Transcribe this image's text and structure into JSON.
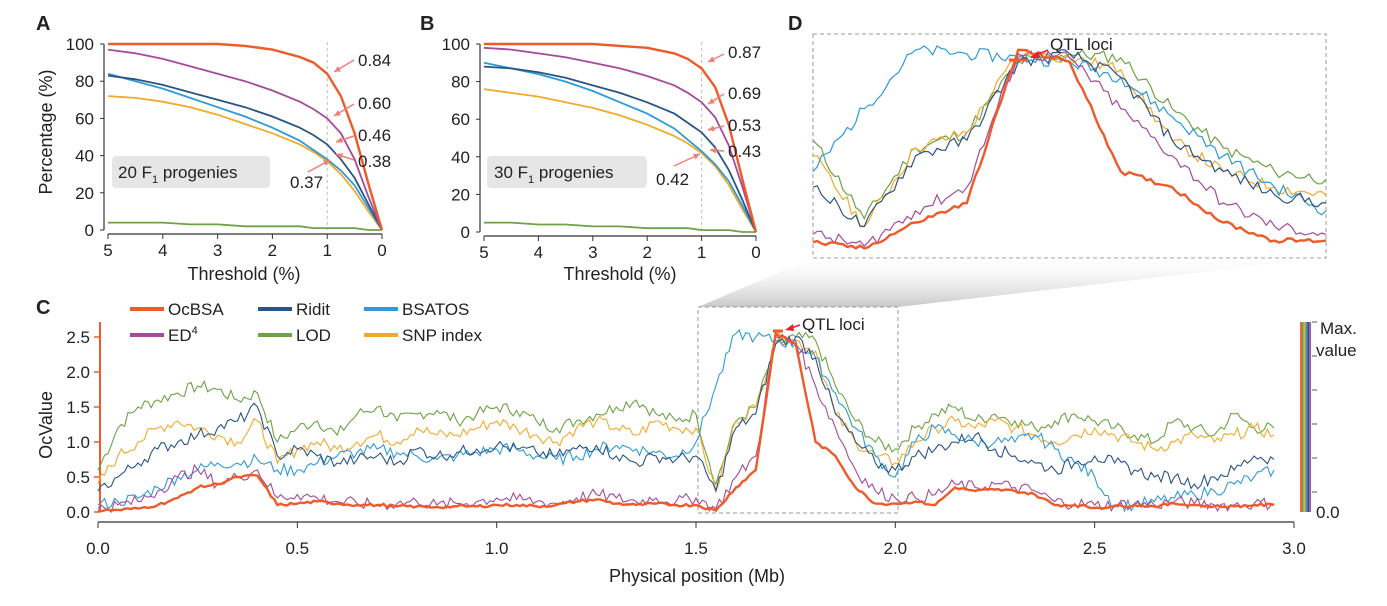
{
  "colors": {
    "OcBSA": "#ee5a2a",
    "ED4": "#a44b9b",
    "Ridit": "#2b5486",
    "LOD": "#6ea246",
    "BSATOS": "#2e9bd6",
    "SNP index": "#f1aa2c",
    "annotation_arrow": "#ef8077",
    "qtl_arrow": "#e8202a"
  },
  "panels": {
    "A": {
      "letter": "A",
      "box_label_main": "20 F",
      "box_label_sub": "1",
      "box_label_rest": " progenies",
      "xlabel": "Threshold (%)",
      "ylabel": "Percentage (%)",
      "xticks": [
        "5",
        "4",
        "3",
        "2",
        "1",
        "0"
      ],
      "yticks": [
        "0",
        "20",
        "40",
        "60",
        "80",
        "100"
      ],
      "annotations": [
        "0.84",
        "0.60",
        "0.46",
        "0.38",
        "0.37"
      ]
    },
    "B": {
      "letter": "B",
      "box_label_main": "30 F",
      "box_label_sub": "1",
      "box_label_rest": " progenies",
      "xlabel": "Threshold (%)",
      "yticks": [
        "0",
        "20",
        "40",
        "60",
        "80",
        "100"
      ],
      "xticks": [
        "5",
        "4",
        "3",
        "2",
        "1",
        "0"
      ],
      "annotations": [
        "0.87",
        "0.69",
        "0.53",
        "0.43",
        "0.42"
      ]
    },
    "C": {
      "letter": "C",
      "xlabel": "Physical position (Mb)",
      "ylabel": "OcValue",
      "xticks": [
        "0.0",
        "0.5",
        "1.0",
        "1.5",
        "2.0",
        "2.5",
        "3.0"
      ],
      "yticks": [
        "0.0",
        "0.5",
        "1.0",
        "1.5",
        "2.0",
        "2.5"
      ],
      "right_label_top": "Max.",
      "right_label_bottom": "value",
      "right_zero": "0.0",
      "qtl_label": "QTL loci"
    },
    "D": {
      "letter": "D",
      "qtl_label": "QTL loci"
    }
  },
  "legend": [
    "OcBSA",
    "Ridit",
    "BSATOS",
    "ED",
    "LOD",
    "SNP index"
  ],
  "legend_superscript": "4",
  "chart_data": [
    {
      "type": "line",
      "panel": "A",
      "xlabel": "Threshold (%)",
      "ylabel": "Percentage (%)",
      "xlim": [
        5,
        0
      ],
      "ylim": [
        0,
        100
      ],
      "x": [
        5,
        4.5,
        4,
        3.5,
        3,
        2.5,
        2,
        1.5,
        1.25,
        1,
        0.75,
        0.5,
        0.25,
        0
      ],
      "series": [
        {
          "name": "OcBSA",
          "values": [
            100,
            100,
            100,
            100,
            100,
            99,
            97,
            93,
            90,
            84,
            72,
            52,
            25,
            0
          ]
        },
        {
          "name": "ED4",
          "values": [
            97,
            95,
            92,
            88,
            84,
            80,
            75,
            69,
            65,
            60,
            52,
            38,
            18,
            0
          ]
        },
        {
          "name": "Ridit",
          "values": [
            83,
            81,
            78,
            74,
            70,
            66,
            61,
            55,
            51,
            46,
            38,
            28,
            14,
            0
          ]
        },
        {
          "name": "BSATOS",
          "values": [
            84,
            80,
            76,
            71,
            66,
            61,
            55,
            48,
            43,
            38,
            32,
            24,
            12,
            0
          ]
        },
        {
          "name": "SNP index",
          "values": [
            72,
            71,
            69,
            66,
            62,
            57,
            52,
            46,
            42,
            37,
            30,
            21,
            10,
            0
          ]
        },
        {
          "name": "LOD",
          "values": [
            4,
            4,
            4,
            3,
            3,
            2,
            2,
            2,
            1,
            1,
            1,
            1,
            0,
            0
          ]
        }
      ],
      "annotations": [
        {
          "label": "0.84",
          "x": 1,
          "y": 84
        },
        {
          "label": "0.60",
          "x": 1,
          "y": 60
        },
        {
          "label": "0.46",
          "x": 1,
          "y": 46
        },
        {
          "label": "0.38",
          "x": 1,
          "y": 38
        },
        {
          "label": "0.37",
          "x": 1,
          "y": 37
        }
      ]
    },
    {
      "type": "line",
      "panel": "B",
      "xlabel": "Threshold (%)",
      "xlim": [
        5,
        0
      ],
      "ylim": [
        0,
        100
      ],
      "x": [
        5,
        4.5,
        4,
        3.5,
        3,
        2.5,
        2,
        1.5,
        1.25,
        1,
        0.75,
        0.5,
        0.25,
        0
      ],
      "series": [
        {
          "name": "OcBSA",
          "values": [
            100,
            100,
            100,
            100,
            100,
            99,
            98,
            95,
            92,
            87,
            77,
            57,
            28,
            0
          ]
        },
        {
          "name": "ED4",
          "values": [
            98,
            97,
            95,
            93,
            90,
            87,
            83,
            78,
            74,
            69,
            61,
            46,
            24,
            0
          ]
        },
        {
          "name": "Ridit",
          "values": [
            88,
            87,
            85,
            82,
            78,
            74,
            69,
            63,
            58,
            53,
            45,
            33,
            17,
            0
          ]
        },
        {
          "name": "BSATOS",
          "values": [
            90,
            87,
            84,
            80,
            75,
            69,
            63,
            55,
            49,
            43,
            36,
            27,
            14,
            0
          ]
        },
        {
          "name": "SNP index",
          "values": [
            76,
            74,
            72,
            69,
            66,
            62,
            57,
            51,
            47,
            42,
            35,
            25,
            12,
            0
          ]
        },
        {
          "name": "LOD",
          "values": [
            5,
            5,
            4,
            4,
            3,
            3,
            2,
            2,
            2,
            1,
            1,
            1,
            0,
            0
          ]
        }
      ],
      "annotations": [
        {
          "label": "0.87",
          "x": 1,
          "y": 87
        },
        {
          "label": "0.69",
          "x": 1,
          "y": 69
        },
        {
          "label": "0.53",
          "x": 1,
          "y": 53
        },
        {
          "label": "0.43",
          "x": 1,
          "y": 43
        },
        {
          "label": "0.42",
          "x": 1,
          "y": 42
        }
      ]
    },
    {
      "type": "line",
      "panel": "C",
      "xlabel": "Physical position (Mb)",
      "ylabel": "OcValue",
      "xlim": [
        0,
        3.0
      ],
      "ylim": [
        0,
        2.6
      ],
      "x": [
        0.0,
        0.05,
        0.1,
        0.15,
        0.2,
        0.25,
        0.3,
        0.35,
        0.4,
        0.45,
        0.5,
        0.55,
        0.6,
        0.65,
        0.7,
        0.75,
        0.8,
        0.85,
        0.9,
        0.95,
        1.0,
        1.05,
        1.1,
        1.15,
        1.2,
        1.25,
        1.3,
        1.35,
        1.4,
        1.45,
        1.5,
        1.55,
        1.6,
        1.65,
        1.7,
        1.75,
        1.8,
        1.85,
        1.9,
        1.95,
        2.0,
        2.05,
        2.1,
        2.15,
        2.2,
        2.25,
        2.3,
        2.35,
        2.4,
        2.45,
        2.5,
        2.55,
        2.6,
        2.65,
        2.7,
        2.75,
        2.8,
        2.85,
        2.9,
        2.95
      ],
      "series": [
        {
          "name": "OcBSA",
          "values": [
            0.02,
            0.03,
            0.05,
            0.1,
            0.2,
            0.35,
            0.4,
            0.5,
            0.52,
            0.1,
            0.12,
            0.15,
            0.12,
            0.1,
            0.1,
            0.08,
            0.08,
            0.07,
            0.08,
            0.08,
            0.1,
            0.1,
            0.08,
            0.1,
            0.15,
            0.18,
            0.12,
            0.1,
            0.12,
            0.1,
            0.1,
            0.02,
            0.35,
            0.6,
            2.55,
            2.4,
            1.0,
            0.8,
            0.35,
            0.12,
            0.12,
            0.15,
            0.1,
            0.35,
            0.3,
            0.32,
            0.3,
            0.25,
            0.1,
            0.1,
            0.06,
            0.08,
            0.1,
            0.08,
            0.12,
            0.1,
            0.08,
            0.08,
            0.1,
            0.1
          ]
        },
        {
          "name": "ED4",
          "values": [
            0.05,
            0.1,
            0.15,
            0.3,
            0.5,
            0.6,
            0.4,
            0.5,
            0.6,
            0.2,
            0.25,
            0.2,
            0.15,
            0.12,
            0.1,
            0.12,
            0.15,
            0.1,
            0.12,
            0.15,
            0.2,
            0.18,
            0.15,
            0.12,
            0.2,
            0.25,
            0.2,
            0.15,
            0.2,
            0.15,
            0.2,
            0.05,
            0.5,
            0.8,
            2.5,
            2.45,
            1.8,
            1.2,
            0.6,
            0.3,
            0.2,
            0.2,
            0.25,
            0.4,
            0.35,
            0.4,
            0.35,
            0.3,
            0.15,
            0.12,
            0.1,
            0.1,
            0.12,
            0.1,
            0.15,
            0.12,
            0.1,
            0.1,
            0.12,
            0.12
          ]
        },
        {
          "name": "Ridit",
          "values": [
            0.3,
            0.5,
            0.7,
            0.9,
            1.0,
            1.1,
            1.2,
            1.3,
            1.5,
            0.8,
            0.9,
            0.8,
            0.7,
            0.75,
            0.8,
            0.7,
            0.9,
            0.8,
            0.85,
            0.9,
            0.95,
            0.9,
            0.85,
            0.8,
            0.9,
            0.95,
            0.8,
            0.7,
            0.8,
            0.75,
            0.8,
            0.3,
            1.2,
            1.4,
            2.4,
            2.5,
            2.2,
            1.4,
            1.0,
            0.7,
            0.6,
            0.8,
            0.9,
            1.0,
            1.1,
            0.9,
            0.8,
            0.7,
            0.6,
            0.7,
            0.8,
            0.7,
            0.6,
            0.5,
            0.5,
            0.4,
            0.5,
            0.6,
            0.8,
            0.75
          ]
        },
        {
          "name": "LOD",
          "values": [
            0.6,
            1.2,
            1.5,
            1.6,
            1.7,
            1.8,
            1.75,
            1.6,
            1.7,
            1.0,
            1.2,
            1.3,
            1.1,
            1.4,
            1.5,
            1.3,
            1.4,
            1.45,
            1.3,
            1.4,
            1.5,
            1.45,
            1.3,
            1.2,
            1.3,
            1.4,
            1.5,
            1.6,
            1.4,
            1.3,
            1.4,
            0.4,
            1.3,
            1.5,
            2.4,
            2.5,
            2.45,
            1.8,
            1.3,
            1.0,
            0.9,
            1.2,
            1.4,
            1.5,
            1.3,
            1.4,
            1.3,
            1.2,
            1.3,
            1.4,
            1.3,
            1.2,
            1.1,
            1.0,
            1.3,
            1.2,
            1.1,
            1.4,
            1.2,
            1.2
          ]
        },
        {
          "name": "BSATOS",
          "values": [
            0.1,
            0.15,
            0.2,
            0.35,
            0.5,
            0.6,
            0.7,
            0.7,
            0.75,
            0.6,
            0.6,
            0.7,
            0.8,
            0.85,
            0.9,
            0.85,
            0.8,
            0.75,
            0.8,
            0.85,
            0.9,
            0.9,
            0.8,
            0.75,
            0.8,
            0.9,
            0.95,
            0.9,
            0.85,
            0.8,
            1.0,
            1.8,
            2.55,
            2.5,
            2.45,
            2.4,
            2.2,
            1.7,
            1.2,
            0.8,
            0.5,
            1.0,
            1.2,
            1.1,
            1.0,
            1.0,
            1.0,
            1.1,
            0.9,
            0.7,
            0.5,
            0.1,
            0.1,
            0.15,
            0.2,
            0.25,
            0.3,
            0.4,
            0.5,
            0.6
          ]
        },
        {
          "name": "SNP index",
          "values": [
            0.4,
            0.8,
            1.0,
            1.2,
            1.3,
            1.2,
            1.1,
            1.0,
            1.3,
            0.7,
            0.9,
            1.0,
            0.9,
            1.0,
            1.1,
            1.0,
            1.2,
            1.1,
            1.1,
            1.2,
            1.3,
            1.2,
            1.1,
            1.0,
            1.2,
            1.3,
            1.2,
            1.1,
            1.3,
            1.2,
            1.2,
            0.3,
            1.3,
            1.5,
            2.5,
            2.45,
            2.3,
            1.4,
            1.0,
            0.8,
            0.7,
            1.0,
            1.2,
            1.3,
            1.2,
            1.3,
            1.2,
            1.1,
            1.0,
            1.1,
            1.2,
            1.1,
            1.0,
            0.9,
            1.0,
            1.1,
            1.0,
            1.1,
            1.2,
            1.1
          ]
        }
      ],
      "annotations": [
        {
          "label": "QTL loci",
          "x": 1.72,
          "y": 2.55
        }
      ],
      "zoom_region": [
        1.5,
        2.0
      ]
    }
  ]
}
